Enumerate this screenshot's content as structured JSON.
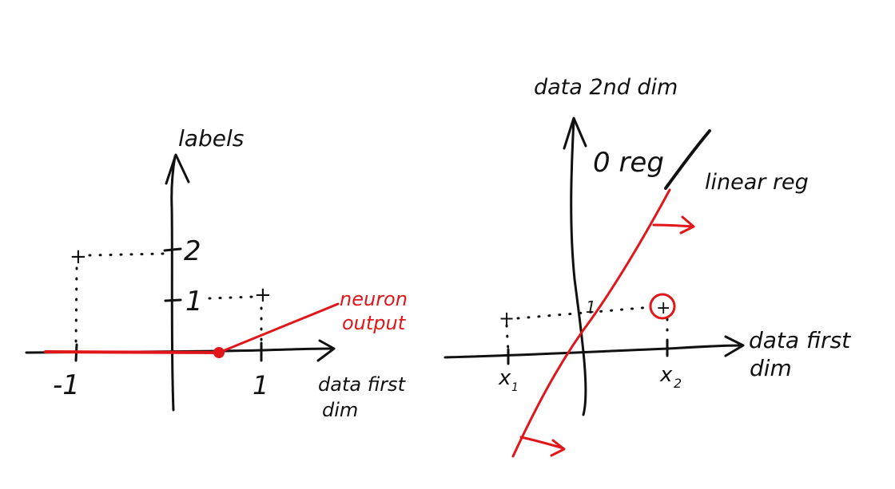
{
  "colors": {
    "ink": "#111111",
    "accent": "#e0161b"
  },
  "left_plot": {
    "y_axis_label": "labels",
    "x_axis_label_line1": "data first",
    "x_axis_label_line2": "dim",
    "tick_y_2": "2",
    "tick_y_1": "1",
    "tick_x_neg1": "-1",
    "tick_x_1": "1",
    "plus_marker": "+",
    "annotation_line1": "neuron",
    "annotation_line2": "output"
  },
  "right_plot": {
    "y_axis_label": "data 2nd dim",
    "x_axis_label_line1": "data first",
    "x_axis_label_line2": "dim",
    "region_zero": "0 reg",
    "region_linear": "linear reg",
    "tick_x1": "x",
    "tick_x1_sub": "1",
    "tick_x2": "x",
    "tick_x2_sub": "2",
    "tick_y_1": "1",
    "plus_marker": "+"
  }
}
